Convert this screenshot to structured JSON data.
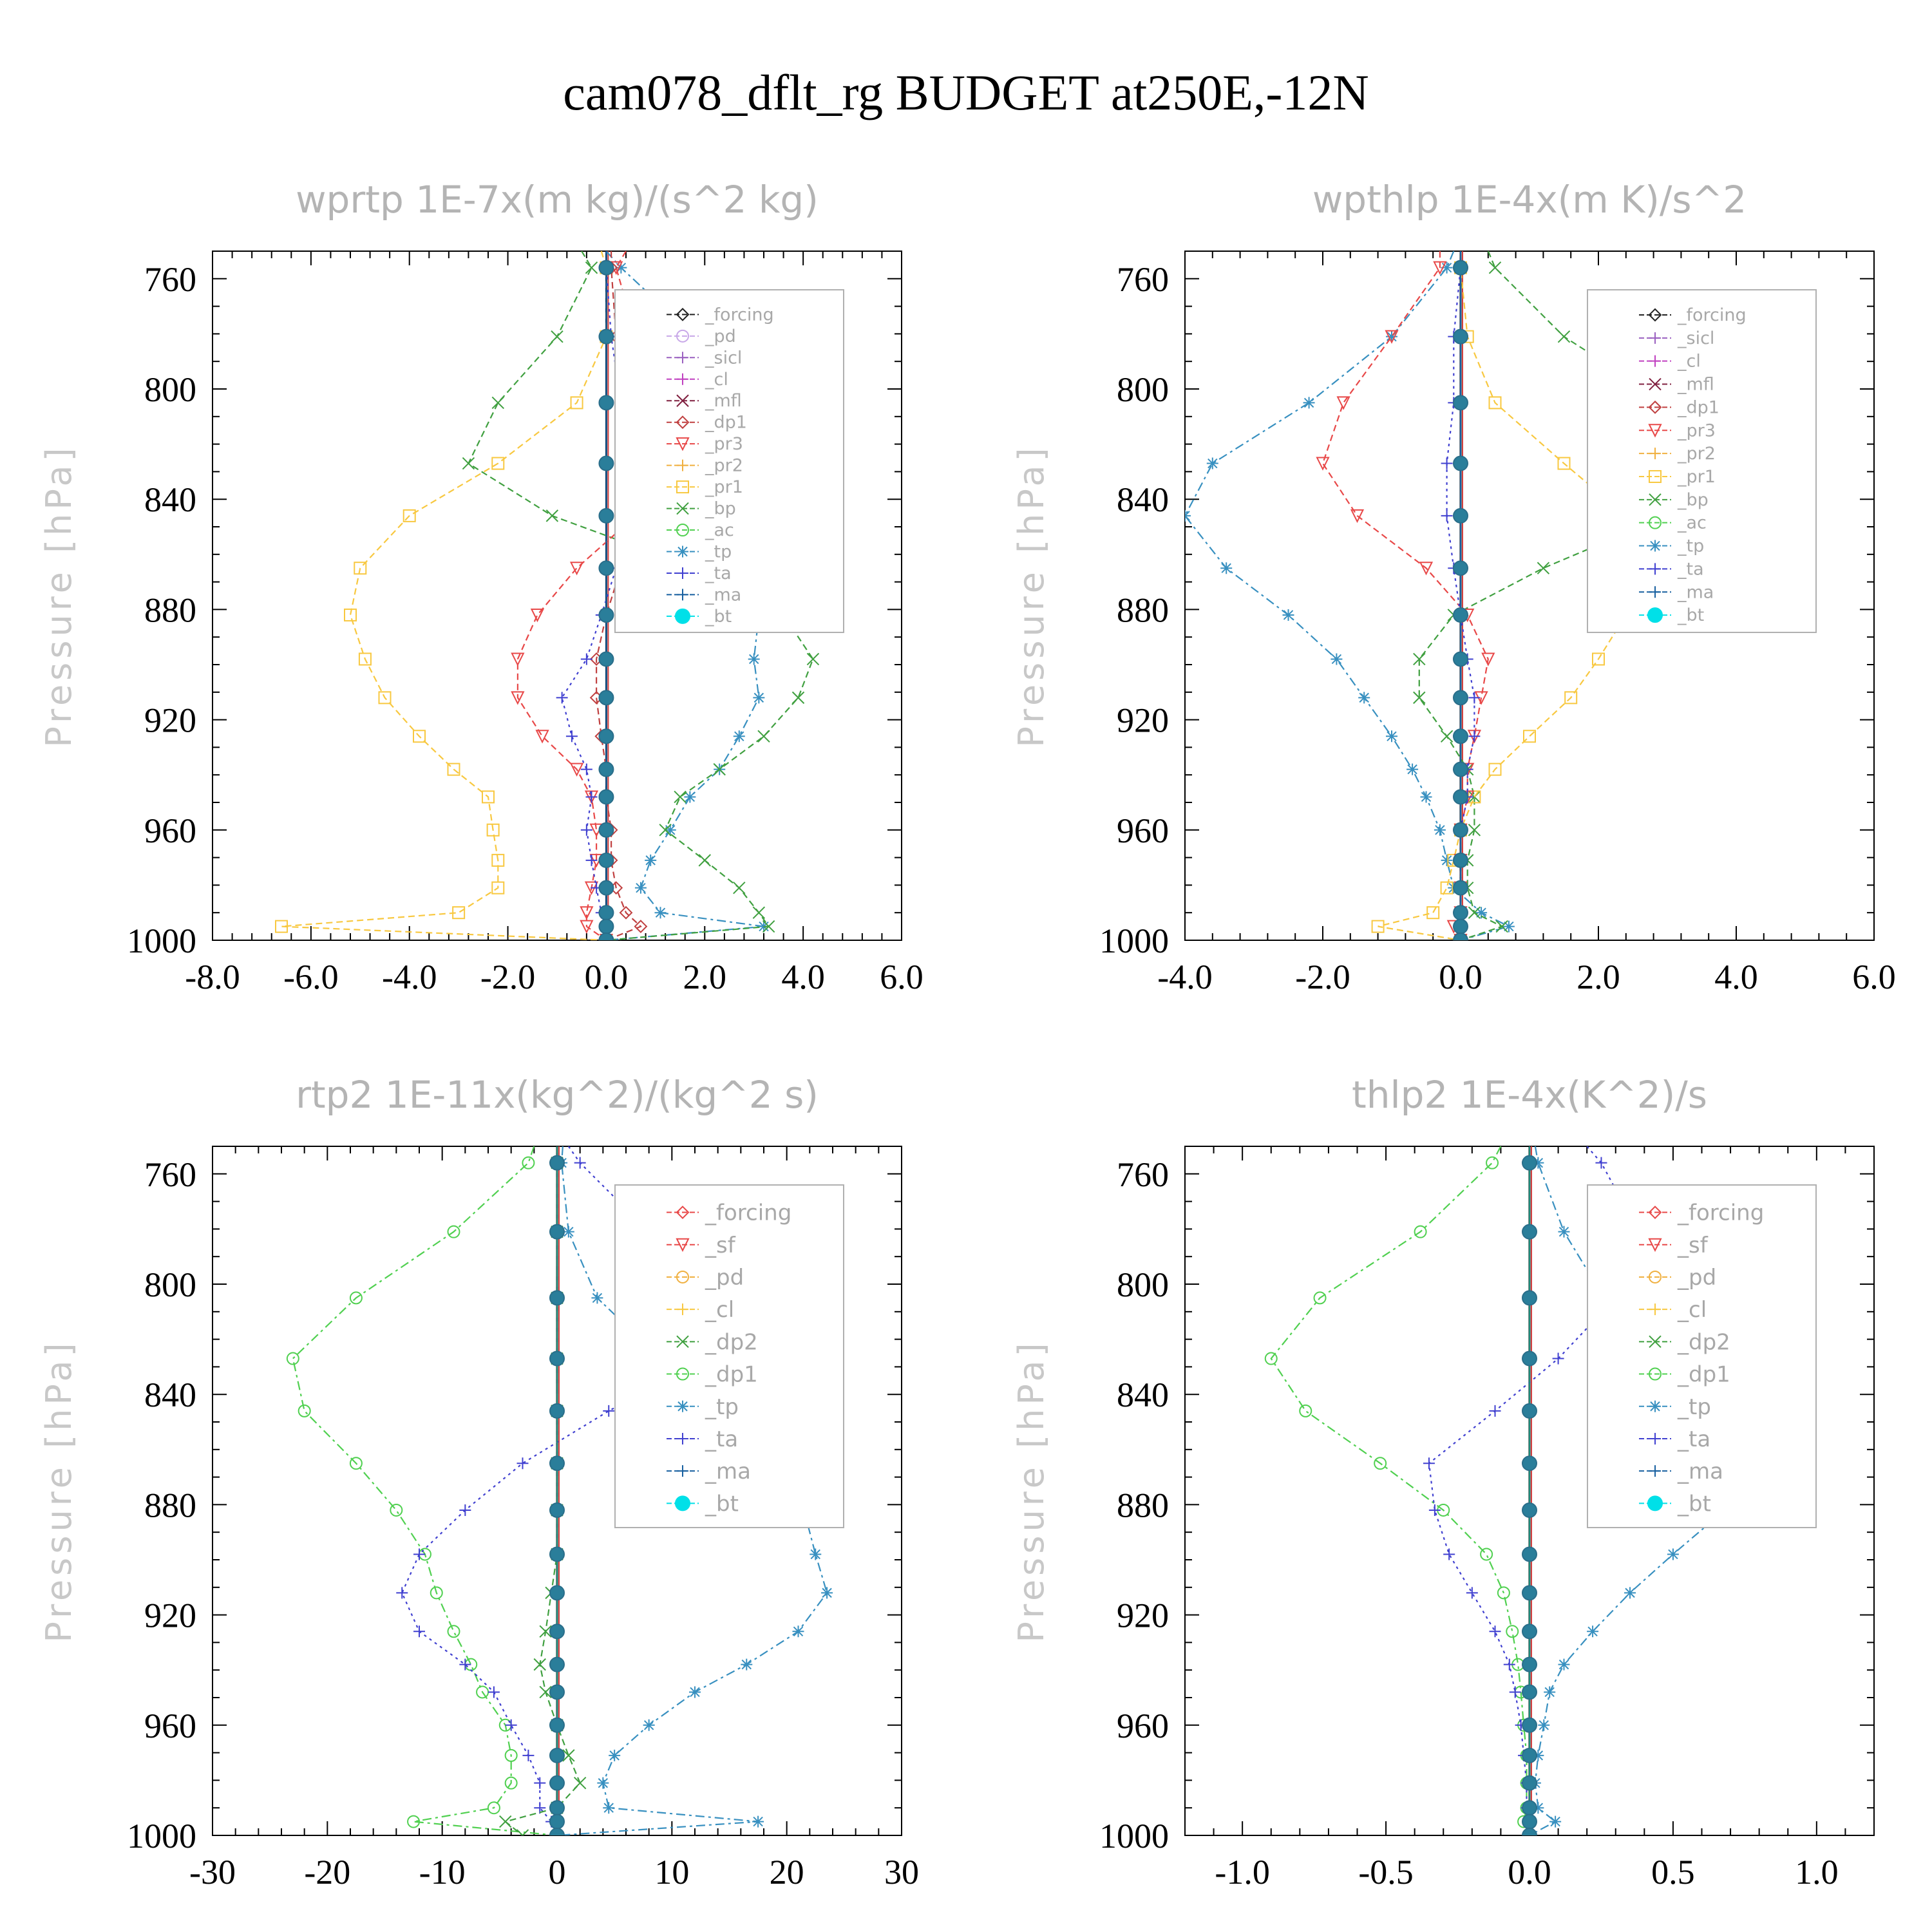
{
  "page_title": "cam078_dflt_rg  BUDGET at250E,-12N",
  "colors": {
    "black": "#222222",
    "lavender": "#c8a8e8",
    "purple": "#9a60c0",
    "magenta": "#c040c0",
    "maroon": "#802040",
    "red": "#e84848",
    "orange": "#f0b040",
    "yellow": "#f8c840",
    "green": "#40a040",
    "lightgreen": "#50d050",
    "steel": "#3890c0",
    "blue": "#4040d0",
    "navy": "#1860a0",
    "cyan": "#00e0e8",
    "teal": "#208878",
    "brown": "#c04040"
  },
  "chart_data": [
    {
      "type": "line",
      "title": "wprtp  1E-7x(m kg)/(s^2 kg)",
      "ylabel": "Pressure [hPa]",
      "xlim": [
        -8,
        6
      ],
      "ylim": [
        750,
        1000
      ],
      "xticks": [
        -8,
        -6,
        -4,
        -2,
        0,
        2,
        4,
        6
      ],
      "xtick_labels": [
        "-8.0",
        "-6.0",
        "-4.0",
        "-2.0",
        "0.0",
        "2.0",
        "4.0",
        "6.0"
      ],
      "yticks": [
        760,
        800,
        840,
        880,
        920,
        960,
        1000
      ],
      "ytick_labels": [
        "760",
        "800",
        "840",
        "880",
        "920",
        "960",
        "1000"
      ],
      "legend": [
        "_forcing",
        "_pd",
        "_sicl",
        "_cl",
        "_mfl",
        "_dp1",
        "_pr3",
        "_pr2",
        "_pr1",
        "_bp",
        "_ac",
        "_tp",
        "_ta",
        "_ma",
        "_bt"
      ],
      "y": [
        750,
        756,
        781,
        805,
        827,
        846,
        865,
        882,
        898,
        912,
        926,
        938,
        948,
        960,
        971,
        981,
        990,
        995,
        1000
      ],
      "series": [
        {
          "name": "_tp",
          "color": "steel",
          "dash": "14,6,4,6",
          "marker": "star",
          "values": [
            0.0,
            0.3,
            1.8,
            3.6,
            3.5,
            3.7,
            3.5,
            3.1,
            3.0,
            3.1,
            2.7,
            2.3,
            1.7,
            1.3,
            0.9,
            0.7,
            1.1,
            3.2,
            0.0
          ]
        },
        {
          "name": "_bp",
          "color": "green",
          "dash": "10,6",
          "marker": "x",
          "values": [
            -0.5,
            -0.3,
            -1.0,
            -2.2,
            -2.8,
            -1.1,
            1.8,
            3.6,
            4.2,
            3.9,
            3.2,
            2.3,
            1.5,
            1.2,
            2.0,
            2.7,
            3.1,
            3.3,
            0.0
          ]
        },
        {
          "name": "_pr1",
          "color": "yellow",
          "dash": "10,6",
          "marker": "square",
          "values": [
            -0.1,
            0.0,
            0.0,
            -0.6,
            -2.2,
            -4.0,
            -5.0,
            -5.2,
            -4.9,
            -4.5,
            -3.8,
            -3.1,
            -2.4,
            -2.3,
            -2.2,
            -2.2,
            -3.0,
            -6.6,
            0.0
          ]
        },
        {
          "name": "_pr3",
          "color": "red",
          "dash": "10,6",
          "marker": "triangle-down",
          "values": [
            0.4,
            0.2,
            0.6,
            1.0,
            1.2,
            0.6,
            -0.6,
            -1.4,
            -1.8,
            -1.8,
            -1.3,
            -0.6,
            -0.3,
            -0.2,
            -0.2,
            -0.3,
            -0.4,
            -0.4,
            0.0
          ]
        },
        {
          "name": "_dp1",
          "color": "brown",
          "dash": "10,6",
          "marker": "diamond",
          "values": [
            0.1,
            0.1,
            0.2,
            0.4,
            0.5,
            0.6,
            0.3,
            0.0,
            -0.2,
            -0.2,
            -0.1,
            0.0,
            0.0,
            0.1,
            0.1,
            0.2,
            0.4,
            0.7,
            0.0
          ]
        },
        {
          "name": "_ta",
          "color": "blue",
          "dash": "4,6",
          "marker": "plus",
          "values": [
            0.0,
            0.0,
            0.1,
            0.3,
            0.4,
            0.5,
            0.2,
            -0.1,
            -0.4,
            -0.9,
            -0.7,
            -0.4,
            -0.3,
            -0.4,
            -0.3,
            -0.2,
            -0.1,
            0.0,
            0.0
          ]
        },
        {
          "name": "_bt",
          "color": "navy",
          "dash": "",
          "marker": "bigdot",
          "values": [
            0.0,
            0.0,
            0.0,
            0.0,
            0.0,
            0.0,
            0.0,
            0.0,
            0.0,
            0.0,
            0.0,
            0.0,
            0.0,
            0.0,
            0.0,
            0.0,
            0.0,
            0.0,
            0.0
          ]
        }
      ]
    },
    {
      "type": "line",
      "title": "wpthlp  1E-4x(m K)/s^2",
      "ylabel": "Pressure [hPa]",
      "xlim": [
        -4,
        6
      ],
      "ylim": [
        750,
        1000
      ],
      "xticks": [
        -4,
        -2,
        0,
        2,
        4,
        6
      ],
      "xtick_labels": [
        "-4.0",
        "-2.0",
        "0.0",
        "2.0",
        "4.0",
        "6.0"
      ],
      "yticks": [
        760,
        800,
        840,
        880,
        920,
        960,
        1000
      ],
      "ytick_labels": [
        "760",
        "800",
        "840",
        "880",
        "920",
        "960",
        "1000"
      ],
      "legend": [
        "_forcing",
        "_sicl",
        "_cl",
        "_mfl",
        "_dp1",
        "_pr3",
        "_pr2",
        "_pr1",
        "_bp",
        "_ac",
        "_tp",
        "_ta",
        "_ma",
        "_bt"
      ],
      "y": [
        750,
        756,
        781,
        805,
        827,
        846,
        865,
        882,
        898,
        912,
        926,
        938,
        948,
        960,
        971,
        981,
        990,
        995,
        1000
      ],
      "series": [
        {
          "name": "_tp",
          "color": "steel",
          "dash": "14,6,4,6",
          "marker": "star",
          "values": [
            -0.1,
            -0.2,
            -1.0,
            -2.2,
            -3.6,
            -4.0,
            -3.4,
            -2.5,
            -1.8,
            -1.4,
            -1.0,
            -0.7,
            -0.5,
            -0.3,
            -0.2,
            -0.1,
            0.3,
            0.7,
            0.0
          ]
        },
        {
          "name": "_bp",
          "color": "green",
          "dash": "10,6",
          "marker": "x",
          "values": [
            0.4,
            0.5,
            1.5,
            3.0,
            4.3,
            3.0,
            1.2,
            -0.1,
            -0.6,
            -0.6,
            -0.2,
            0.1,
            0.2,
            0.2,
            0.1,
            0.1,
            0.2,
            0.6,
            0.0
          ]
        },
        {
          "name": "_pr1",
          "color": "yellow",
          "dash": "10,6",
          "marker": "square",
          "values": [
            0.0,
            0.0,
            0.1,
            0.5,
            1.5,
            2.4,
            2.7,
            2.4,
            2.0,
            1.6,
            1.0,
            0.5,
            0.2,
            0.0,
            -0.1,
            -0.2,
            -0.4,
            -1.2,
            0.0
          ]
        },
        {
          "name": "_pr3",
          "color": "red",
          "dash": "10,6",
          "marker": "triangle-down",
          "values": [
            -0.3,
            -0.3,
            -1.0,
            -1.7,
            -2.0,
            -1.5,
            -0.5,
            0.1,
            0.4,
            0.3,
            0.2,
            0.1,
            0.1,
            0.0,
            0.0,
            0.0,
            0.0,
            -0.1,
            0.0
          ]
        },
        {
          "name": "_ta",
          "color": "blue",
          "dash": "4,6",
          "marker": "plus",
          "values": [
            0.0,
            0.0,
            -0.1,
            -0.1,
            -0.2,
            -0.2,
            -0.1,
            0.0,
            0.1,
            0.2,
            0.2,
            0.1,
            0.1,
            0.0,
            0.0,
            0.0,
            0.0,
            0.0,
            0.0
          ]
        },
        {
          "name": "_bt",
          "color": "navy",
          "dash": "",
          "marker": "bigdot",
          "values": [
            0.0,
            0.0,
            0.0,
            0.0,
            0.0,
            0.0,
            0.0,
            0.0,
            0.0,
            0.0,
            0.0,
            0.0,
            0.0,
            0.0,
            0.0,
            0.0,
            0.0,
            0.0,
            0.0
          ]
        }
      ]
    },
    {
      "type": "line",
      "title": "rtp2  1E-11x(kg^2)/(kg^2 s)",
      "ylabel": "Pressure [hPa]",
      "xlim": [
        -30,
        30
      ],
      "ylim": [
        750,
        1000
      ],
      "xticks": [
        -30,
        -20,
        -10,
        0,
        10,
        20,
        30
      ],
      "xtick_labels": [
        "-30",
        "-20",
        "-10",
        "0",
        "10",
        "20",
        "30"
      ],
      "yticks": [
        760,
        800,
        840,
        880,
        920,
        960,
        1000
      ],
      "ytick_labels": [
        "760",
        "800",
        "840",
        "880",
        "920",
        "960",
        "1000"
      ],
      "legend": [
        "_forcing",
        "_sf",
        "_pd",
        "_cl",
        "_dp2",
        "_dp1",
        "_tp",
        "_ta",
        "_ma",
        "_bt"
      ],
      "y": [
        750,
        756,
        781,
        805,
        827,
        846,
        865,
        882,
        898,
        912,
        926,
        938,
        948,
        960,
        971,
        981,
        990,
        995,
        1000
      ],
      "series": [
        {
          "name": "_dp1",
          "color": "lightgreen",
          "dash": "14,6,4,6",
          "marker": "circle",
          "values": [
            -2.0,
            -2.5,
            -9.0,
            -17.5,
            -23.0,
            -22.0,
            -17.5,
            -14.0,
            -11.5,
            -10.5,
            -9.0,
            -7.5,
            -6.5,
            -4.5,
            -4.0,
            -4.0,
            -5.5,
            -12.5,
            0.0
          ]
        },
        {
          "name": "_tp",
          "color": "steel",
          "dash": "14,6,4,6",
          "marker": "star",
          "values": [
            0.5,
            0.4,
            1.0,
            3.5,
            9.0,
            17.5,
            20.5,
            21.5,
            22.5,
            23.5,
            21.0,
            16.5,
            12.0,
            8.0,
            5.0,
            4.0,
            4.5,
            17.5,
            0.0
          ]
        },
        {
          "name": "_ta",
          "color": "blue",
          "dash": "4,6",
          "marker": "plus",
          "values": [
            1.0,
            2.0,
            8.0,
            14.0,
            13.0,
            4.5,
            -3.0,
            -8.0,
            -12.0,
            -13.5,
            -12.0,
            -8.0,
            -5.5,
            -4.0,
            -2.5,
            -1.5,
            -1.5,
            -0.5,
            0.0
          ]
        },
        {
          "name": "_dp2",
          "color": "green",
          "dash": "10,6",
          "marker": "x",
          "values": [
            0.0,
            0.0,
            0.0,
            0.0,
            0.0,
            0.0,
            0.0,
            0.0,
            0.0,
            -0.5,
            -1.0,
            -1.5,
            -1.0,
            0.0,
            1.0,
            2.0,
            0.0,
            -4.5,
            -3.0
          ]
        },
        {
          "name": "_bt",
          "color": "teal",
          "dash": "",
          "marker": "bigdot",
          "values": [
            0.0,
            0.0,
            0.0,
            0.0,
            0.0,
            0.0,
            0.0,
            0.0,
            0.0,
            0.0,
            0.0,
            0.0,
            0.0,
            0.0,
            0.0,
            0.0,
            0.0,
            0.0,
            0.0
          ]
        }
      ]
    },
    {
      "type": "line",
      "title": "thlp2  1E-4x(K^2)/s",
      "ylabel": "Pressure [hPa]",
      "xlim": [
        -1.2,
        1.2
      ],
      "ylim": [
        750,
        1000
      ],
      "xticks": [
        -1.0,
        -0.5,
        0.0,
        0.5,
        1.0
      ],
      "xtick_labels": [
        "-1.0",
        "-0.5",
        "0.0",
        "0.5",
        "1.0"
      ],
      "yticks": [
        760,
        800,
        840,
        880,
        920,
        960,
        1000
      ],
      "ytick_labels": [
        "760",
        "800",
        "840",
        "880",
        "920",
        "960",
        "1000"
      ],
      "legend": [
        "_forcing",
        "_sf",
        "_pd",
        "_cl",
        "_dp2",
        "_dp1",
        "_tp",
        "_ta",
        "_ma",
        "_bt"
      ],
      "y": [
        750,
        756,
        781,
        805,
        827,
        846,
        865,
        882,
        898,
        912,
        926,
        938,
        948,
        960,
        971,
        981,
        990,
        995,
        1000
      ],
      "series": [
        {
          "name": "_dp1",
          "color": "lightgreen",
          "dash": "14,6,4,6",
          "marker": "circle",
          "values": [
            -0.1,
            -0.13,
            -0.38,
            -0.73,
            -0.9,
            -0.78,
            -0.52,
            -0.3,
            -0.15,
            -0.09,
            -0.06,
            -0.04,
            -0.03,
            -0.02,
            -0.01,
            -0.01,
            -0.01,
            -0.02,
            0.0
          ]
        },
        {
          "name": "_tp",
          "color": "steel",
          "dash": "14,6,4,6",
          "marker": "star",
          "values": [
            0.02,
            0.03,
            0.12,
            0.26,
            0.5,
            0.98,
            0.92,
            0.68,
            0.5,
            0.35,
            0.22,
            0.12,
            0.07,
            0.05,
            0.03,
            0.02,
            0.03,
            0.09,
            0.0
          ]
        },
        {
          "name": "_ta",
          "color": "blue",
          "dash": "4,6",
          "marker": "plus",
          "values": [
            0.2,
            0.25,
            0.38,
            0.3,
            0.1,
            -0.12,
            -0.35,
            -0.33,
            -0.28,
            -0.2,
            -0.12,
            -0.07,
            -0.05,
            -0.03,
            -0.02,
            -0.01,
            -0.01,
            0.0,
            0.0
          ]
        },
        {
          "name": "_bt",
          "color": "teal",
          "dash": "",
          "marker": "bigdot",
          "values": [
            0.0,
            0.0,
            0.0,
            0.0,
            0.0,
            0.0,
            0.0,
            0.0,
            0.0,
            0.0,
            0.0,
            0.0,
            0.0,
            0.0,
            0.0,
            0.0,
            0.0,
            0.0,
            0.0
          ]
        }
      ]
    }
  ]
}
